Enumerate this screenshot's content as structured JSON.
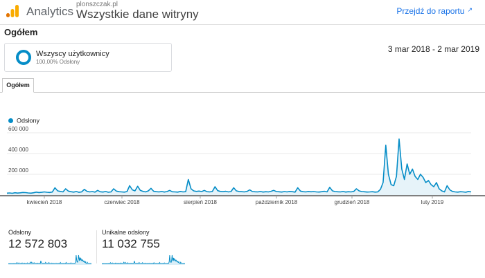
{
  "header": {
    "app_name": "Analytics",
    "property_name": "plonszczak.pl",
    "view_name": "Wszystkie dane witryny",
    "report_link": "Przejdź do raportu",
    "colors": {
      "logo_orange": "#F9AB00",
      "logo_dark_orange": "#E37400",
      "link": "#1A73E8"
    }
  },
  "section_title": "Ogółem",
  "segment": {
    "name": "Wszyscy użytkownicy",
    "subtext": "100,00% Odsłony",
    "color": "#058DC7"
  },
  "date_range": "3 mar 2018 - 2 mar 2019",
  "tab": {
    "label": "Ogółem"
  },
  "legend": {
    "label": "Odsłony",
    "color": "#058DC7"
  },
  "chart_data": {
    "type": "line",
    "title": "",
    "xlabel": "",
    "ylabel": "",
    "series": [
      {
        "name": "Odsłony",
        "values": [
          18000,
          20000,
          17000,
          22000,
          19000,
          21000,
          25000,
          23000,
          20000,
          18000,
          22000,
          28000,
          24000,
          26000,
          30000,
          27000,
          25000,
          29000,
          70000,
          40000,
          35000,
          30000,
          60000,
          38000,
          32000,
          28000,
          34000,
          26000,
          30000,
          55000,
          36000,
          30000,
          33000,
          28000,
          45000,
          31000,
          29000,
          34000,
          27000,
          30000,
          60000,
          38000,
          32000,
          30000,
          28000,
          33000,
          90000,
          50000,
          40000,
          85000,
          45000,
          35000,
          30000,
          40000,
          65000,
          36000,
          32000,
          30000,
          34000,
          29000,
          33000,
          45000,
          31000,
          30000,
          28000,
          35000,
          30000,
          32000,
          150000,
          60000,
          40000,
          35000,
          38000,
          33000,
          45000,
          32000,
          30000,
          34000,
          80000,
          42000,
          35000,
          32000,
          36000,
          30000,
          33000,
          70000,
          40000,
          34000,
          32000,
          30000,
          35000,
          50000,
          33000,
          31000,
          30000,
          34000,
          29000,
          32000,
          30000,
          36000,
          45000,
          33000,
          31000,
          29000,
          33000,
          30000,
          35000,
          32000,
          28000,
          70000,
          38000,
          32000,
          30000,
          34000,
          31000,
          33000,
          30000,
          29000,
          32000,
          36000,
          30000,
          75000,
          40000,
          33000,
          31000,
          30000,
          34000,
          29000,
          32000,
          30000,
          35000,
          60000,
          40000,
          33000,
          31000,
          29000,
          30000,
          32000,
          28000,
          30000,
          55000,
          120000,
          480000,
          200000,
          100000,
          90000,
          180000,
          540000,
          250000,
          150000,
          300000,
          200000,
          250000,
          180000,
          150000,
          200000,
          170000,
          120000,
          140000,
          100000,
          80000,
          120000,
          60000,
          40000,
          30000,
          90000,
          50000,
          35000,
          30000,
          28000,
          32000,
          30000,
          27000,
          35000,
          30000
        ]
      }
    ],
    "x_tick_labels": [
      "kwiecień 2018",
      "czerwiec 2018",
      "sierpień 2018",
      "październik 2018",
      "grudzień 2018",
      "luty 2019"
    ],
    "y_tick_labels": [
      "600 000",
      "400 000",
      "200 000"
    ],
    "y_ticks": [
      600000,
      400000,
      200000
    ],
    "ylim": [
      0,
      600000
    ],
    "grid": true,
    "legend_position": "top-left"
  },
  "metrics": [
    {
      "label": "Odsłony",
      "value": "12 572 803"
    },
    {
      "label": "Unikalne odsłony",
      "value": "11 032 755"
    }
  ]
}
